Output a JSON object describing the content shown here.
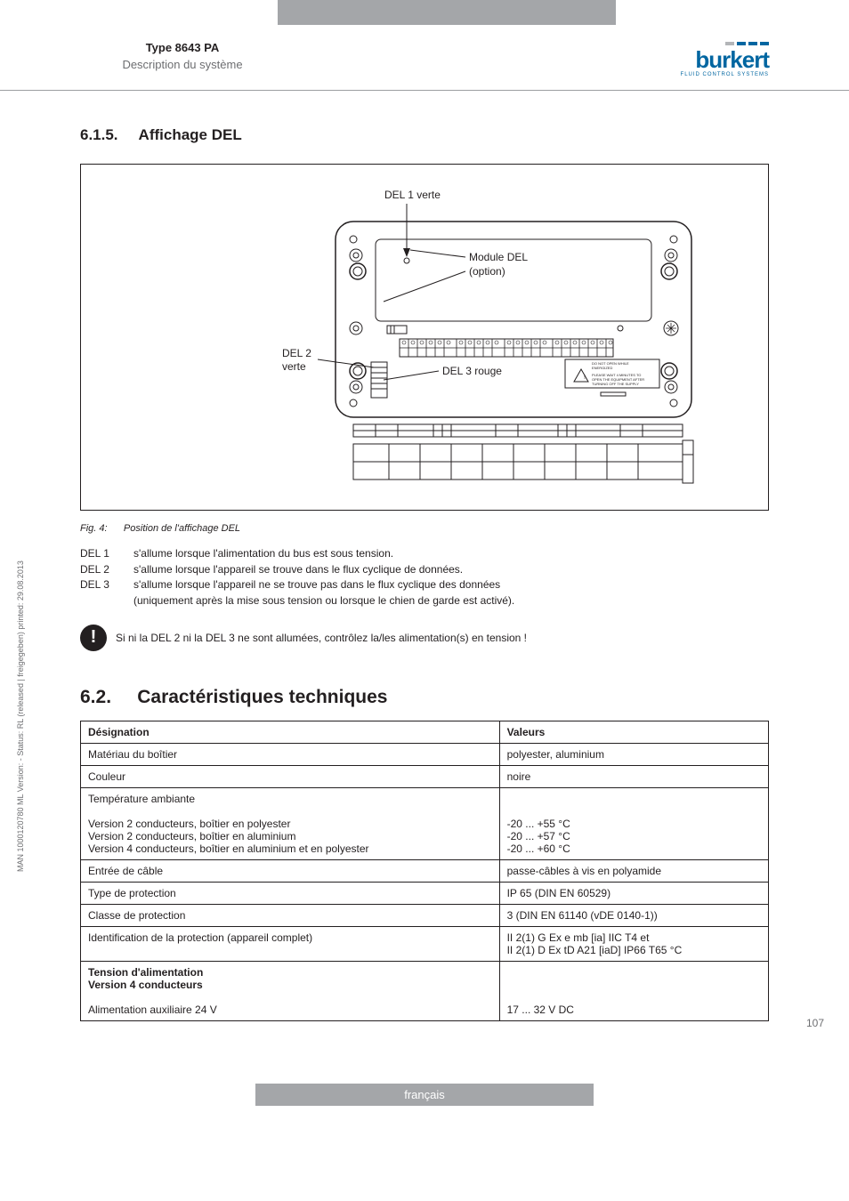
{
  "header": {
    "type_line": "Type 8643 PA",
    "desc_line": "Description du système",
    "logo_text": "burkert",
    "logo_sub": "FLUID CONTROL SYSTEMS",
    "stripe_colors": [
      "#b3b5b8",
      "#0066a1",
      "#0066a1",
      "#0066a1"
    ]
  },
  "section_615": {
    "number": "6.1.5.",
    "title": "Affichage DEL"
  },
  "figure": {
    "label_del1": "DEL 1 verte",
    "label_module": "Module DEL",
    "label_module2": "(option)",
    "label_del2_a": "DEL 2",
    "label_del2_b": "verte",
    "label_del3": "DEL 3 rouge",
    "warn1": "DO NOT OPEN WHILE",
    "warn2": "ENERGIZED",
    "warn3": "PLEASE WAIT 4 MINUTES TO",
    "warn4": "OPEN THE EQUIPMENT AFTER",
    "warn5": "TURNING OFF THE SUPPLY",
    "caption_prefix": "Fig. 4:",
    "caption_text": "Position de l'affichage DEL"
  },
  "del_list": {
    "r1_lbl": "DEL 1",
    "r1_txt": "s'allume lorsque l'alimentation du bus est sous tension.",
    "r2_lbl": "DEL 2",
    "r2_txt": "s'allume lorsque l'appareil se trouve dans le flux cyclique de données.",
    "r3_lbl": "DEL 3",
    "r3_txt": "s'allume lorsque l'appareil ne se trouve pas dans le flux cyclique des données",
    "r3_txt2": "(uniquement après la mise sous tension ou lorsque le chien de garde est activé)."
  },
  "note": {
    "icon": "!",
    "text": "Si ni la DEL 2 ni la DEL 3 ne sont allumées, contrôlez la/les alimentation(s) en tension !"
  },
  "section_62": {
    "number": "6.2.",
    "title": "Caractéristiques techniques"
  },
  "spec_table": {
    "h1": "Désignation",
    "h2": "Valeurs",
    "rows": [
      {
        "d": "Matériau du boîtier",
        "v": "polyester, aluminium"
      },
      {
        "d": "Couleur",
        "v": "noire"
      },
      {
        "d": "Température ambiante\n\nVersion 2 conducteurs, boîtier en polyester\nVersion 2 conducteurs, boîtier en aluminium\nVersion 4 conducteurs, boîtier en aluminium et en polyester",
        "v": "\n\n-20 ... +55 °C\n-20 ... +57 °C\n-20 ... +60 °C"
      },
      {
        "d": "Entrée de câble",
        "v": "passe-câbles à vis en polyamide"
      },
      {
        "d": "Type de protection",
        "v": "IP 65 (DIN EN 60529)"
      },
      {
        "d": "Classe de protection",
        "v": "3 (DIN EN 61140 (vDE 0140-1))"
      },
      {
        "d": "Identification de la protection (appareil complet)",
        "v": "II 2(1) G Ex e mb [ia] IIC T4 et\nII 2(1) D Ex tD A21 [iaD] IP66 T65 °C"
      }
    ],
    "last_d1": "Tension d'alimentation",
    "last_d2": "Version 4 conducteurs",
    "last_d3": "Alimentation auxiliaire 24 V",
    "last_v": "17 ... 32 V DC"
  },
  "sidebar": "MAN 1000120780 ML Version: - Status: RL (released | freigegeben) printed: 29.08.2013",
  "page_number": "107",
  "footer": "français",
  "colors": {
    "gray_block": "#a4a6a9",
    "rule": "#9c9ea1",
    "text": "#231f20",
    "muted": "#6d6e71",
    "brand": "#0066a1"
  }
}
